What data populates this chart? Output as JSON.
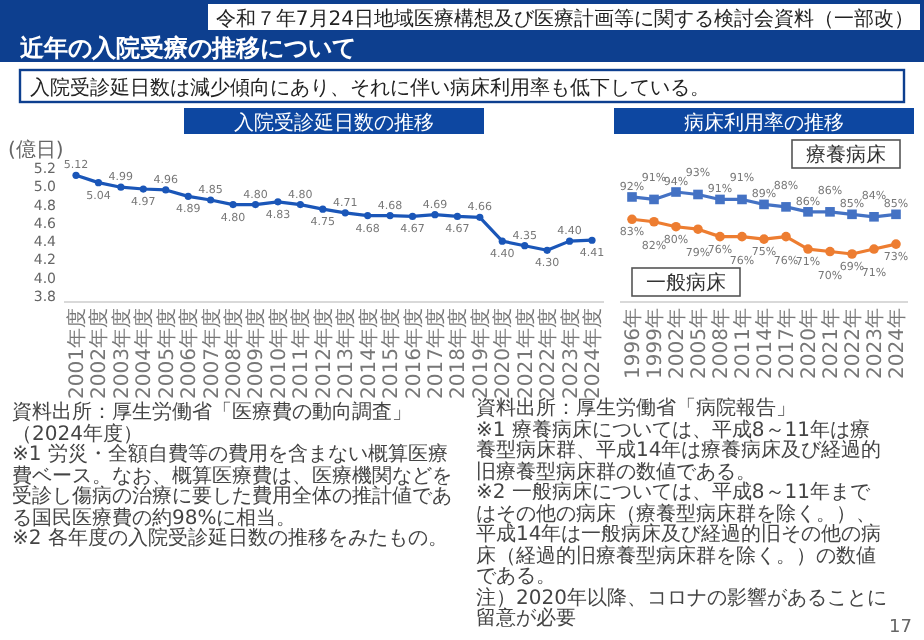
{
  "chart_data": [
    {
      "type": "line",
      "title": "入院受診延日数の推移",
      "ylabel": "(億日)",
      "categories": [
        "2001年度",
        "2002年度",
        "2003年度",
        "2004年度",
        "2005年度",
        "2006年度",
        "2007年度",
        "2008年度",
        "2009年度",
        "2010年度",
        "2011年度",
        "2012年度",
        "2013年度",
        "2014年度",
        "2015年度",
        "2016年度",
        "2017年度",
        "2018年度",
        "2019年度",
        "2020年度",
        "2021年度",
        "2022年度",
        "2023年度",
        "2024年度"
      ],
      "series": [
        {
          "color": "#1a56b8",
          "values": [
            5.12,
            5.04,
            4.99,
            4.97,
            4.96,
            4.89,
            4.85,
            4.8,
            4.8,
            4.83,
            4.8,
            4.75,
            4.71,
            4.68,
            4.68,
            4.67,
            4.69,
            4.67,
            4.66,
            4.4,
            4.35,
            4.3,
            4.4,
            4.41
          ],
          "value_labels": [
            "5.12",
            "5.04",
            "4.99",
            "4.97",
            "4.96",
            "4.89",
            "4.85",
            "4.80",
            "4.80",
            "4.83",
            "4.80",
            "4.75",
            "4.71",
            "4.68",
            "4.68",
            "4.67",
            "4.69",
            "4.67",
            "4.66",
            "4.40",
            "4.35",
            "4.30",
            "4.40",
            "4.41"
          ]
        }
      ],
      "ylim": [
        3.8,
        5.2
      ],
      "yticks": [
        3.8,
        {
          "value": 4,
          "label": "4.0"
        },
        4.2,
        4.4,
        4.6,
        4.8,
        {
          "value": 5,
          "label": "5.0"
        },
        5.2
      ],
      "marker": "circle",
      "annotations": [
        "令和７年7月24日地域医療構想及び医療計画等に関する検討会資料（一部改）",
        "近年の入院受療の推移について",
        "入院受診延日数は減少傾向にあり、それに伴い病床利用率も低下している。",
        "資料出所：厚生労働省「医療費の動向調査」（2024年度）",
        "※1 労災・全額自費等の費用を含まない概算医療費ベース。なお、概算医療費は、医療機関などを受診し傷病の治療に要した費用全体の推計値である国民医療費の約98%に相当。",
        "※2 各年度の入院受診延日数の推移をみたもの。"
      ]
    },
    {
      "type": "line",
      "title": "病床利用率の推移",
      "tick_labels": "x",
      "categories": [
        "1996年",
        "1999年",
        "2002年",
        "2005年",
        "2008年",
        "2011年",
        "2014年",
        "2017年",
        "2020年",
        "2021年",
        "2022年",
        "2023年",
        "2024年"
      ],
      "series": [
        {
          "name": "療養病床",
          "color": "#4472c4",
          "marker": "square",
          "values": [
            92,
            91,
            94,
            93,
            91,
            91,
            89,
            88,
            86,
            86,
            85,
            84,
            85
          ],
          "value_labels": [
            "92%",
            "91%",
            "94%",
            "93%",
            "91%",
            "91%",
            "89%",
            "88%",
            "86%",
            "86%",
            "85%",
            "84%",
            "85%"
          ]
        },
        {
          "name": "一般病床",
          "color": "#ed7d31",
          "marker": "circle",
          "values": [
            83,
            82,
            80,
            79,
            76,
            76,
            75,
            76,
            71,
            70,
            69,
            71,
            73
          ],
          "value_labels": [
            "83%",
            "82%",
            "80%",
            "79%",
            "76%",
            "76%",
            "75%",
            "76%",
            "71%",
            "70%",
            "69%",
            "71%",
            "73%"
          ]
        }
      ],
      "annotations": [
        "資料出所：厚生労働省「病院報告」",
        "※1 療養病床については、平成8～11年は療養型病床群、平成14年は療養病床及び経過的旧療養型病床群の数値である。",
        "※2 一般病床については、平成8～11年まではその他の病床（療養型病床群を除く。）、平成14年は一般病床及び経過的旧その他の病床（経過的旧療養型病床群を除く。）の数値である。",
        "注）2020年以降、コロナの影響があることに留意が必要",
        "17"
      ]
    }
  ]
}
